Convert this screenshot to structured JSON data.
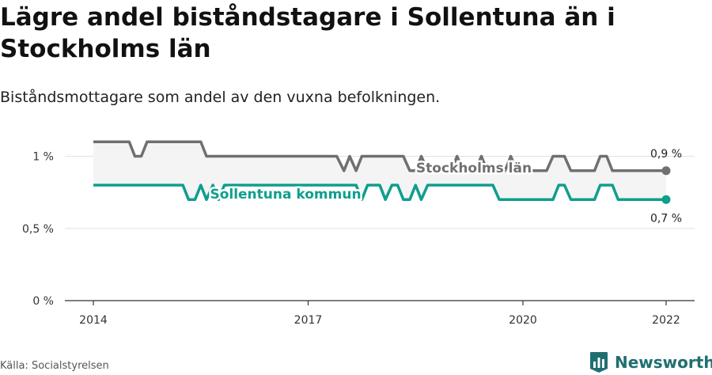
{
  "title": "Lägre andel biståndstagare i Sollentuna än i Stockholms län",
  "subtitle": "Biståndsmottagare som andel av den vuxna befolkningen.",
  "source": "Källa: Socialstyrelsen",
  "brand": {
    "name": "Newsworthy",
    "color": "#1f6f71",
    "icon": "bar-chart-logo-icon"
  },
  "chart_data": {
    "type": "line",
    "title": "Lägre andel biståndstagare i Sollentuna än i Stockholms län",
    "subtitle": "Biståndsmottagare som andel av den vuxna befolkningen.",
    "xlabel": "",
    "ylabel": "",
    "xlim": [
      2013.7,
      2022.4
    ],
    "ylim": [
      0,
      1.2
    ],
    "yticks": [
      {
        "value": 0,
        "label": "0 %"
      },
      {
        "value": 0.5,
        "label": "0,5 %"
      },
      {
        "value": 1,
        "label": "1 %"
      }
    ],
    "xticks": [
      {
        "value": 2014,
        "label": "2014"
      },
      {
        "value": 2017,
        "label": "2017"
      },
      {
        "value": 2020,
        "label": "2020"
      },
      {
        "value": 2022,
        "label": "2022"
      }
    ],
    "grid": true,
    "area_between_series": true,
    "series": [
      {
        "name": "Stockholms län",
        "color": "#707070",
        "end_label": "0,9 %",
        "points": [
          [
            2014.0,
            1.1
          ],
          [
            2014.5,
            1.1
          ],
          [
            2014.58,
            1.0
          ],
          [
            2014.67,
            1.0
          ],
          [
            2014.75,
            1.1
          ],
          [
            2015.5,
            1.1
          ],
          [
            2015.58,
            1.0
          ],
          [
            2016.95,
            1.0
          ],
          [
            2017.05,
            1.0
          ],
          [
            2017.4,
            1.0
          ],
          [
            2017.5,
            0.9
          ],
          [
            2017.58,
            1.0
          ],
          [
            2017.67,
            0.9
          ],
          [
            2017.75,
            1.0
          ],
          [
            2018.33,
            1.0
          ],
          [
            2018.42,
            0.9
          ],
          [
            2018.5,
            0.9
          ],
          [
            2018.58,
            1.0
          ],
          [
            2018.67,
            0.9
          ],
          [
            2019.0,
            0.9
          ],
          [
            2019.08,
            1.0
          ],
          [
            2019.17,
            0.9
          ],
          [
            2019.33,
            0.9
          ],
          [
            2019.42,
            1.0
          ],
          [
            2019.5,
            0.9
          ],
          [
            2019.75,
            0.9
          ],
          [
            2019.83,
            1.0
          ],
          [
            2019.92,
            0.9
          ],
          [
            2020.33,
            0.9
          ],
          [
            2020.42,
            1.0
          ],
          [
            2020.58,
            1.0
          ],
          [
            2020.67,
            0.9
          ],
          [
            2021.0,
            0.9
          ],
          [
            2021.08,
            1.0
          ],
          [
            2021.17,
            1.0
          ],
          [
            2021.25,
            0.9
          ],
          [
            2022.0,
            0.9
          ]
        ]
      },
      {
        "name": "Sollentuna kommun",
        "color": "#0e9e8e",
        "end_label": "0,7 %",
        "points": [
          [
            2014.0,
            0.8
          ],
          [
            2015.25,
            0.8
          ],
          [
            2015.33,
            0.7
          ],
          [
            2015.42,
            0.7
          ],
          [
            2015.5,
            0.8
          ],
          [
            2015.58,
            0.7
          ],
          [
            2015.67,
            0.8
          ],
          [
            2015.75,
            0.7
          ],
          [
            2015.83,
            0.8
          ],
          [
            2017.67,
            0.8
          ],
          [
            2017.75,
            0.7
          ],
          [
            2017.83,
            0.8
          ],
          [
            2018.0,
            0.8
          ],
          [
            2018.08,
            0.7
          ],
          [
            2018.17,
            0.8
          ],
          [
            2018.25,
            0.8
          ],
          [
            2018.33,
            0.7
          ],
          [
            2018.42,
            0.7
          ],
          [
            2018.5,
            0.8
          ],
          [
            2018.58,
            0.7
          ],
          [
            2018.67,
            0.8
          ],
          [
            2019.5,
            0.8
          ],
          [
            2019.58,
            0.8
          ],
          [
            2019.67,
            0.7
          ],
          [
            2020.42,
            0.7
          ],
          [
            2020.5,
            0.8
          ],
          [
            2020.58,
            0.8
          ],
          [
            2020.67,
            0.7
          ],
          [
            2021.0,
            0.7
          ],
          [
            2021.08,
            0.8
          ],
          [
            2021.25,
            0.8
          ],
          [
            2021.33,
            0.7
          ],
          [
            2021.83,
            0.7
          ],
          [
            2021.92,
            0.7
          ],
          [
            2022.0,
            0.7
          ]
        ]
      }
    ]
  }
}
